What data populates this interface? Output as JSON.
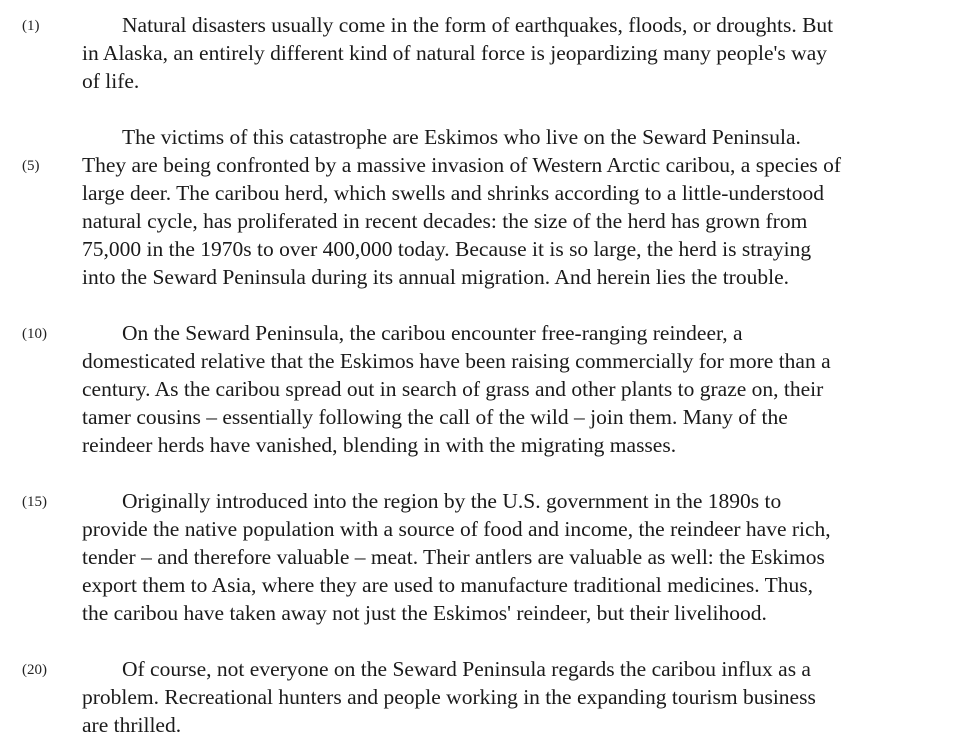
{
  "passage": {
    "paragraphs": [
      {
        "lines": [
          "Natural disasters usually come in the form of earthquakes, floods, or droughts.  But",
          "in Alaska, an entirely different kind of natural force is jeopardizing many people's way",
          "of life."
        ]
      },
      {
        "lines": [
          "The victims of this catastrophe are Eskimos who live on the Seward Peninsula.",
          "They are being confronted by a massive invasion of Western Arctic caribou, a species of",
          "large deer.  The caribou herd, which swells and shrinks according to a little-understood",
          "natural cycle, has proliferated in recent decades:  the size of the herd has grown from",
          "75,000 in the 1970s to over 400,000 today.  Because it is so large, the herd is straying",
          "into the Seward Peninsula during its annual migration.  And herein lies the trouble."
        ]
      },
      {
        "lines": [
          "On the Seward Peninsula, the caribou encounter free-ranging reindeer, a",
          "domesticated relative that the Eskimos have been raising commercially for more than a",
          "century.  As the caribou spread out in search of grass and other plants to graze on, their",
          "tamer cousins – essentially following the call of the wild – join them.  Many of the",
          "reindeer herds have vanished, blending in with the migrating masses."
        ]
      },
      {
        "lines": [
          "Originally introduced into the region by the U.S. government in the 1890s to",
          "provide the native population with a source of food and income, the reindeer have rich,",
          "tender – and therefore valuable – meat.  Their antlers are valuable as well:  the Eskimos",
          "export them to Asia, where they are used to manufacture traditional medicines.  Thus,",
          "the caribou have taken away not just the Eskimos' reindeer, but their livelihood."
        ]
      },
      {
        "lines": [
          "Of course, not everyone on the Seward Peninsula regards the caribou influx as a",
          "problem.  Recreational hunters and people working in the expanding tourism business",
          "are thrilled."
        ]
      }
    ],
    "line_numbers": [
      "(1)",
      "(5)",
      "(10)",
      "(15)",
      "(20)"
    ]
  }
}
